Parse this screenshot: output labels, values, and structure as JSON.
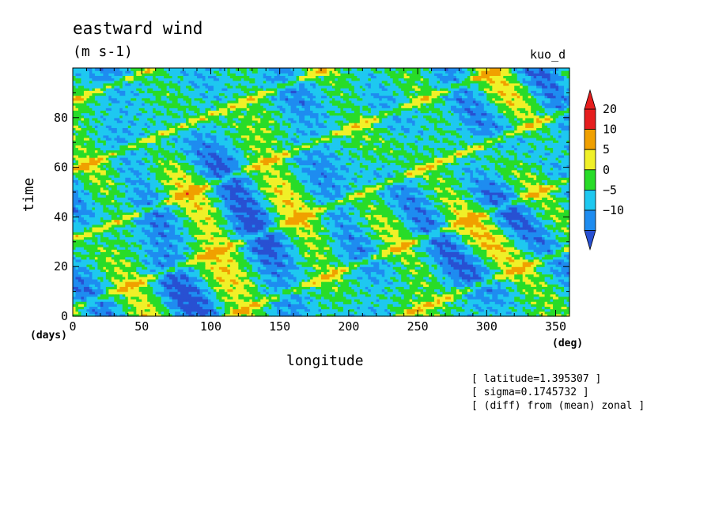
{
  "title": "eastward wind",
  "units": "(m s-1)",
  "experiment": "kuo_d",
  "notes": [
    "[ latitude=1.395307 ]",
    "[ sigma=0.1745732 ]",
    "[ (diff) from (mean) zonal ]"
  ],
  "chart_data": {
    "type": "heatmap",
    "xlabel": "longitude",
    "ylabel": "time",
    "xunit": "(deg)",
    "yunit": "(days)",
    "xlim": [
      0,
      360
    ],
    "ylim": [
      0,
      100
    ],
    "xticks": [
      0,
      50,
      100,
      150,
      200,
      250,
      300,
      350
    ],
    "yticks": [
      0,
      20,
      40,
      60,
      80
    ],
    "colorbar": {
      "levels": [
        -10,
        -5,
        0,
        5,
        10,
        20
      ],
      "labels": [
        "20",
        "10",
        "5",
        "0",
        "−5",
        "−10"
      ],
      "colors": [
        "#1e8cf0",
        "#1ec8f0",
        "#28dc28",
        "#f0f028",
        "#f0a000",
        "#e61e1e",
        "#2850d2"
      ],
      "extend": "both"
    },
    "features": "eastward-propagating positive wind streaks, slope about 45 deg longitude per 10 days"
  },
  "palette": {
    "below_min": "#2850d2",
    "n10_n5": "#1e8cf0",
    "n5_0": "#1ec8f0",
    "0_5": "#28dc28",
    "5_10": "#f0f028",
    "10_20": "#f0a000",
    "above_20": "#e61e1e"
  }
}
